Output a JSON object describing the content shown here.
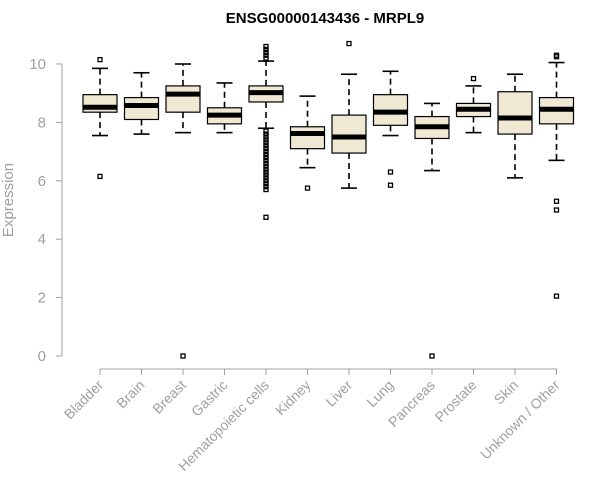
{
  "chart_data": {
    "type": "boxplot",
    "title": "ENSG00000143436 - MRPL9",
    "xlabel": "",
    "ylabel": "Expression",
    "ylim": [
      0,
      10.5
    ],
    "yticks": [
      0,
      2,
      4,
      6,
      8,
      10
    ],
    "grid": false,
    "box_fill": "#efe8d3",
    "categories": [
      "Bladder",
      "Brain",
      "Breast",
      "Gastric",
      "Hematopoietic cells",
      "Kidney",
      "Liver",
      "Lung",
      "Pancreas",
      "Prostate",
      "Skin",
      "Unknown / Other"
    ],
    "boxes": [
      {
        "q1": 8.35,
        "median": 8.52,
        "q3": 8.95,
        "whisker_low": 7.55,
        "whisker_high": 9.85,
        "outliers": [
          10.15,
          6.15
        ]
      },
      {
        "q1": 8.1,
        "median": 8.58,
        "q3": 8.85,
        "whisker_low": 7.6,
        "whisker_high": 9.7,
        "outliers": []
      },
      {
        "q1": 8.35,
        "median": 8.97,
        "q3": 9.25,
        "whisker_low": 7.65,
        "whisker_high": 10.0,
        "outliers": [
          0.0
        ]
      },
      {
        "q1": 7.95,
        "median": 8.25,
        "q3": 8.5,
        "whisker_low": 7.65,
        "whisker_high": 9.35,
        "outliers": []
      },
      {
        "q1": 8.7,
        "median": 9.02,
        "q3": 9.25,
        "whisker_low": 7.8,
        "whisker_high": 10.1,
        "outliers": [
          10.3,
          10.4,
          10.5,
          10.6,
          10.2,
          7.7,
          7.6,
          7.5,
          7.4,
          7.3,
          7.2,
          7.1,
          7.0,
          6.9,
          6.8,
          6.7,
          6.6,
          6.5,
          6.4,
          6.3,
          6.2,
          6.1,
          6.0,
          5.9,
          5.8,
          5.7,
          4.75
        ]
      },
      {
        "q1": 7.1,
        "median": 7.62,
        "q3": 7.85,
        "whisker_low": 6.45,
        "whisker_high": 8.9,
        "outliers": [
          5.75
        ]
      },
      {
        "q1": 6.95,
        "median": 7.5,
        "q3": 8.25,
        "whisker_low": 5.75,
        "whisker_high": 9.65,
        "outliers": [
          10.7
        ]
      },
      {
        "q1": 7.9,
        "median": 8.35,
        "q3": 8.95,
        "whisker_low": 7.55,
        "whisker_high": 9.75,
        "outliers": [
          6.3,
          5.85
        ]
      },
      {
        "q1": 7.45,
        "median": 7.85,
        "q3": 8.2,
        "whisker_low": 6.35,
        "whisker_high": 8.65,
        "outliers": [
          0.0
        ]
      },
      {
        "q1": 8.2,
        "median": 8.45,
        "q3": 8.65,
        "whisker_low": 7.65,
        "whisker_high": 9.25,
        "outliers": [
          9.5
        ]
      },
      {
        "q1": 7.6,
        "median": 8.15,
        "q3": 9.05,
        "whisker_low": 6.1,
        "whisker_high": 9.65,
        "outliers": []
      },
      {
        "q1": 7.95,
        "median": 8.45,
        "q3": 8.85,
        "whisker_low": 6.7,
        "whisker_high": 10.05,
        "outliers": [
          10.3,
          10.25,
          5.3,
          5.0,
          2.05
        ]
      }
    ]
  }
}
